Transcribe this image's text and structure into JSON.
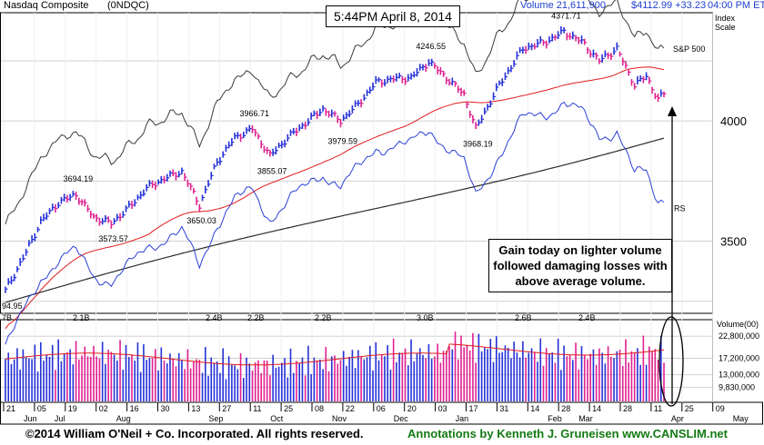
{
  "header": {
    "index_name": "Nasdaq Composite",
    "symbol": "(0NDQC)",
    "volume_label": "Volume 21,611,900",
    "price_label": "$4112.99 +33.23",
    "time_label": "04:00 PM ET",
    "index_scale_label": "Index Scale"
  },
  "timestamp_box": "5:44PM April 8, 2014",
  "annotation_box": "Gain today on lighter volume followed damaging losses with above average volume.",
  "footer": {
    "copyright": "©2014 William O'Neil + Co. Incorporated. All rights reserved.",
    "annotations": "Annotations by Kenneth J. Gruneisen www.CANSLIM.net"
  },
  "colors": {
    "up_bar": "#2430d8",
    "down_bar": "#e0208f",
    "ma50": "#e21b1b",
    "ma200": "#2b2b2b",
    "rs_line": "#2b3fd6",
    "sp500_line": "#3a3a3a",
    "volume_avg": "#e21b1b"
  },
  "chart_data": {
    "type": "line",
    "title": "Nasdaq Composite (0NDQC)",
    "price_axis": {
      "ticks": [
        3500,
        4000
      ],
      "ylim": [
        3200,
        4450
      ],
      "grid": true
    },
    "volume_axis": {
      "label": "Volume(00)",
      "ticks": [
        9830000,
        13000000,
        17200000,
        22800000
      ]
    },
    "x_labels": [
      {
        "label": "21",
        "month": "Jun"
      },
      {
        "label": "05",
        "month": "Jul"
      },
      {
        "label": "19",
        "month": ""
      },
      {
        "label": "02",
        "month": "Aug"
      },
      {
        "label": "16",
        "month": ""
      },
      {
        "label": "30",
        "month": ""
      },
      {
        "label": "13",
        "month": "Sep"
      },
      {
        "label": "27",
        "month": ""
      },
      {
        "label": "11",
        "month": "Oct"
      },
      {
        "label": "25",
        "month": ""
      },
      {
        "label": "08",
        "month": "Nov"
      },
      {
        "label": "22",
        "month": ""
      },
      {
        "label": "06",
        "month": "Dec"
      },
      {
        "label": "20",
        "month": ""
      },
      {
        "label": "03",
        "month": "Jan"
      },
      {
        "label": "17",
        "month": ""
      },
      {
        "label": "31",
        "month": ""
      },
      {
        "label": "14",
        "month": "Feb"
      },
      {
        "label": "28",
        "month": "Mar"
      },
      {
        "label": "14",
        "month": ""
      },
      {
        "label": "28",
        "month": ""
      },
      {
        "label": "11",
        "month": "Apr"
      },
      {
        "label": "25",
        "month": ""
      },
      {
        "label": "09",
        "month": "May"
      }
    ],
    "price_annotations": [
      {
        "label": "94.95",
        "value": 3294.95
      },
      {
        "label": "3694.19",
        "value": 3694.19
      },
      {
        "label": "3573.57",
        "value": 3573.57
      },
      {
        "label": "3650.03",
        "value": 3650.03
      },
      {
        "label": "3966.71",
        "value": 3966.71
      },
      {
        "label": "3855.07",
        "value": 3855.07
      },
      {
        "label": "3979.59",
        "value": 3979.59
      },
      {
        "label": "4246.55",
        "value": 4246.55
      },
      {
        "label": "3968.19",
        "value": 3968.19
      },
      {
        "label": "4371.71",
        "value": 4371.71
      }
    ],
    "volume_annotations": [
      "7B",
      "2.1B",
      "2.4B",
      "2.2B",
      "2.2B",
      "3.0B",
      "2.6B",
      "2.4B"
    ],
    "line_labels": {
      "sp500": "S&P 500",
      "rs": "RS"
    },
    "price_keypoints": [
      [
        0,
        3295
      ],
      [
        6,
        3430
      ],
      [
        12,
        3580
      ],
      [
        18,
        3660
      ],
      [
        24,
        3694
      ],
      [
        30,
        3600
      ],
      [
        36,
        3574
      ],
      [
        42,
        3640
      ],
      [
        48,
        3720
      ],
      [
        54,
        3760
      ],
      [
        60,
        3790
      ],
      [
        66,
        3650
      ],
      [
        72,
        3830
      ],
      [
        78,
        3930
      ],
      [
        84,
        3967
      ],
      [
        90,
        3855
      ],
      [
        96,
        3930
      ],
      [
        102,
        3990
      ],
      [
        108,
        4050
      ],
      [
        114,
        4000
      ],
      [
        120,
        4070
      ],
      [
        126,
        4160
      ],
      [
        132,
        4175
      ],
      [
        138,
        4180
      ],
      [
        144,
        4246
      ],
      [
        150,
        4180
      ],
      [
        156,
        4110
      ],
      [
        160,
        3968
      ],
      [
        168,
        4150
      ],
      [
        176,
        4300
      ],
      [
        184,
        4330
      ],
      [
        190,
        4371
      ],
      [
        196,
        4330
      ],
      [
        202,
        4250
      ],
      [
        208,
        4300
      ],
      [
        214,
        4150
      ],
      [
        218,
        4185
      ],
      [
        222,
        4090
      ],
      [
        224,
        4113
      ]
    ]
  }
}
